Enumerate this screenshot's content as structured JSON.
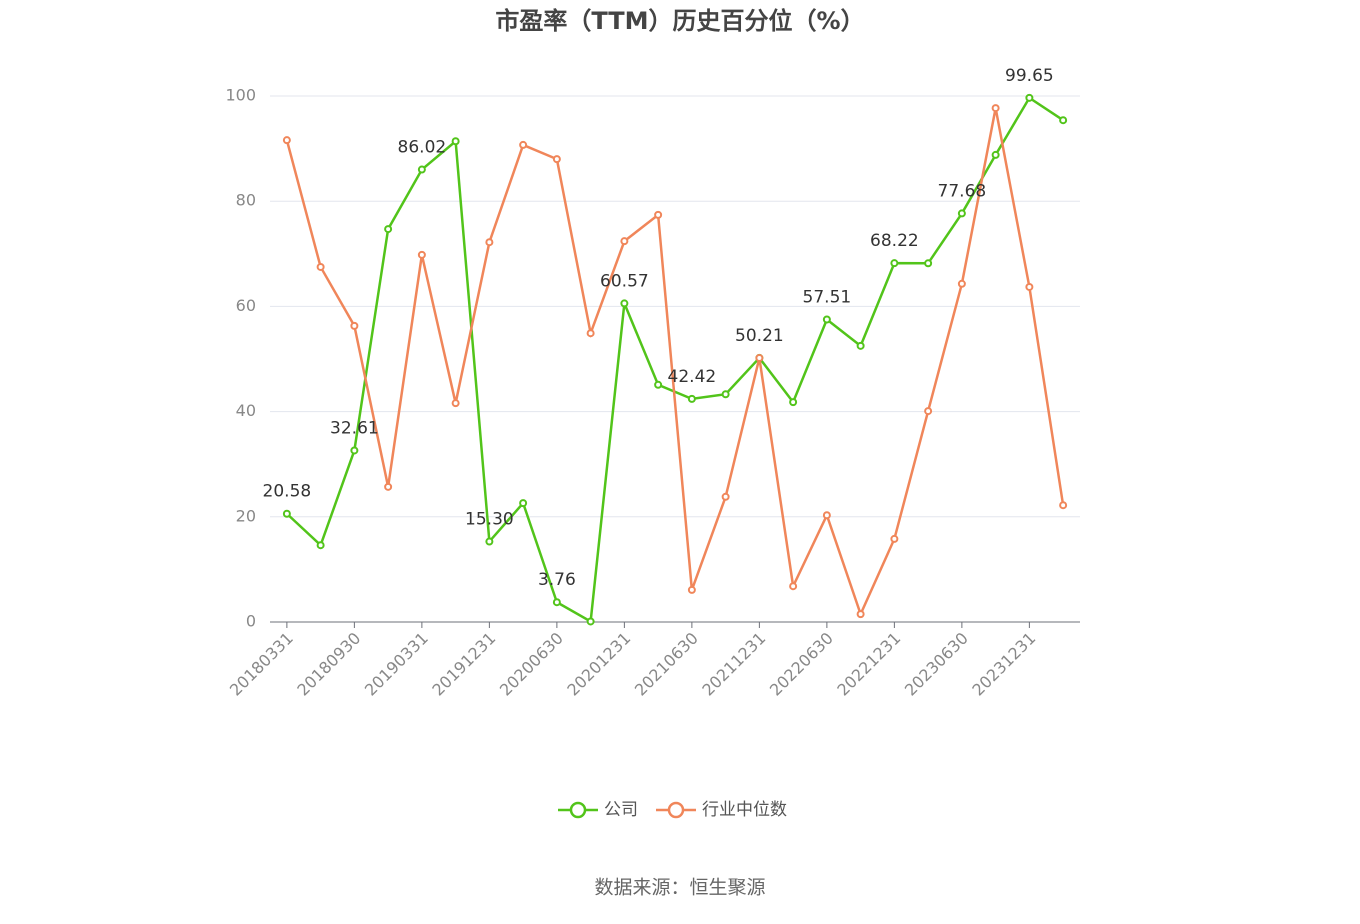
{
  "chart_data": {
    "type": "line",
    "title": "市盈率（TTM）历史百分位（%）",
    "categories": [
      "20180331",
      null,
      "20180930",
      null,
      "20190331",
      null,
      "20191231",
      null,
      "20200630",
      null,
      "20201231",
      null,
      "20210630",
      null,
      "20211231",
      null,
      "20220630",
      null,
      "20221231",
      null,
      "20230630",
      null,
      "20231231",
      null
    ],
    "series": [
      {
        "name": "公司",
        "color": "#52c41a",
        "values": [
          20.58,
          14.6,
          32.61,
          74.7,
          86.02,
          91.4,
          15.3,
          22.6,
          3.76,
          0.1,
          60.57,
          45.1,
          42.42,
          43.3,
          50.21,
          41.8,
          57.51,
          52.5,
          68.22,
          68.2,
          77.68,
          88.8,
          99.65,
          95.4
        ],
        "value_labels": [
          "20.58",
          null,
          "32.61",
          null,
          "86.02",
          null,
          "15.30",
          null,
          "3.76",
          null,
          "60.57",
          null,
          "42.42",
          null,
          "50.21",
          null,
          "57.51",
          null,
          "68.22",
          null,
          "77.68",
          null,
          "99.65",
          null
        ]
      },
      {
        "name": "行业中位数",
        "color": "#f0865a",
        "values": [
          91.6,
          67.5,
          56.3,
          25.7,
          69.8,
          41.6,
          72.2,
          90.7,
          88.0,
          54.9,
          72.4,
          77.4,
          6.1,
          23.8,
          50.2,
          6.8,
          20.3,
          1.5,
          15.8,
          40.1,
          64.3,
          97.7,
          63.7,
          22.2
        ]
      }
    ],
    "ylim": [
      0,
      100
    ],
    "yticks": [
      0,
      20,
      40,
      60,
      80,
      100
    ],
    "grid": true,
    "legend": "bottom",
    "source": "数据来源：恒生聚源"
  }
}
